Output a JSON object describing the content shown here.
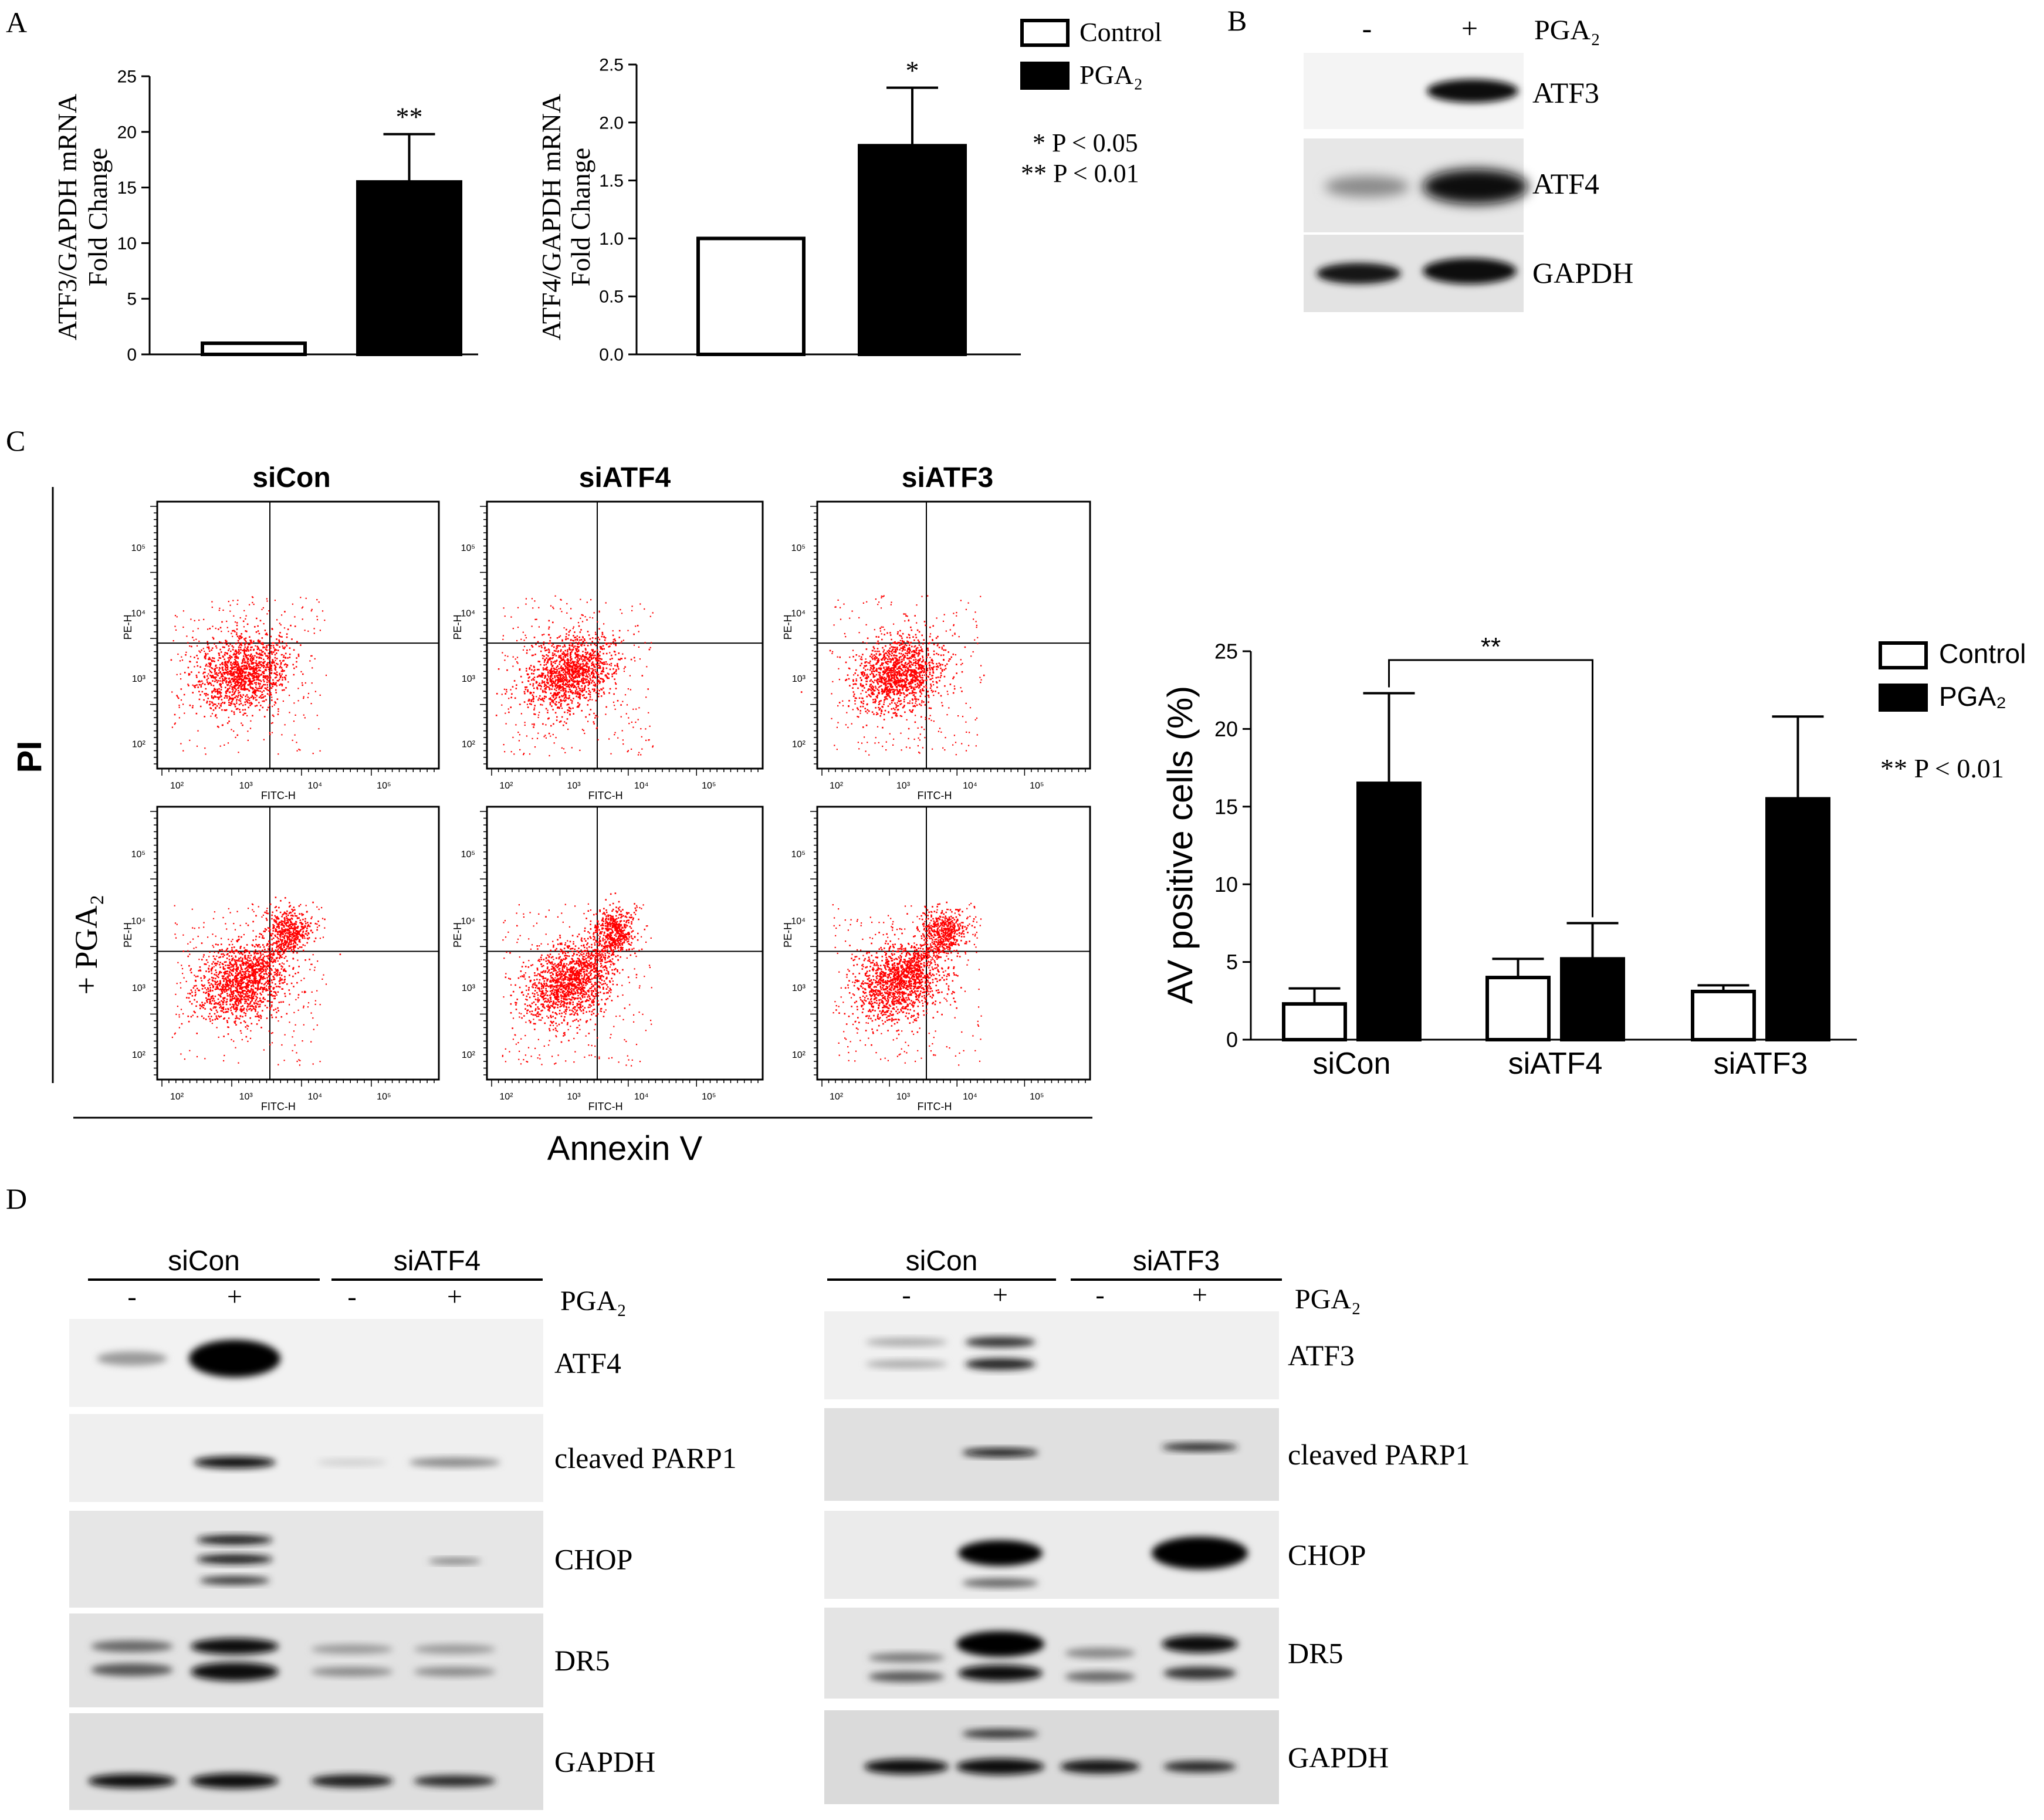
{
  "panels": {
    "a": "A",
    "b": "B",
    "c": "C",
    "d": "D"
  },
  "stats": {
    "a": [
      "* P < 0.05",
      "** P < 0.01"
    ],
    "c": "** P < 0.01"
  },
  "colors": {
    "control": "#ffffff",
    "pga2": "#000000",
    "dots": "#ff0000",
    "axis": "#000000"
  },
  "chart_data": [
    {
      "id": "atf3-mrna",
      "type": "bar",
      "categories": [
        "Control",
        "PGA2"
      ],
      "values": [
        1.0,
        15.5
      ],
      "errors": [
        0,
        4.3
      ],
      "ylabel": "ATF3/GAPDH mRNA",
      "ylabel2": "Fold Change",
      "ylim": [
        0,
        25
      ],
      "yticks": [
        "0",
        "5",
        "10",
        "15",
        "20",
        "25"
      ],
      "significance": "**",
      "legend": [
        "Control",
        "PGA₂"
      ]
    },
    {
      "id": "atf4-mrna",
      "type": "bar",
      "categories": [
        "Control",
        "PGA2"
      ],
      "values": [
        1.0,
        1.8
      ],
      "errors": [
        0,
        0.5
      ],
      "ylabel": "ATF4/GAPDH mRNA",
      "ylabel2": "Fold Change",
      "ylim": [
        0,
        2.5
      ],
      "yticks": [
        "0.0",
        "0.5",
        "1.0",
        "1.5",
        "2.0",
        "2.5"
      ],
      "significance": "*"
    },
    {
      "id": "av-positive",
      "type": "bar",
      "categories": [
        "siCon",
        "siATF4",
        "siATF3"
      ],
      "series": [
        {
          "name": "Control",
          "values": [
            2.3,
            4.0,
            3.1
          ],
          "errors": [
            1.0,
            1.2,
            0.4
          ]
        },
        {
          "name": "PGA₂",
          "values": [
            16.5,
            5.2,
            15.5
          ],
          "errors": [
            5.8,
            2.3,
            5.3
          ]
        }
      ],
      "ylabel": "AV positive cells (%)",
      "ylim": [
        0,
        25
      ],
      "yticks": [
        "0",
        "5",
        "10",
        "15",
        "20",
        "25"
      ],
      "comparison": "**",
      "legend": [
        "Control",
        "PGA₂"
      ]
    }
  ],
  "blot_b": {
    "lanes": [
      "-",
      "+"
    ],
    "treatment": "PGA₂",
    "bands": [
      "ATF3",
      "ATF4",
      "GAPDH"
    ]
  },
  "flow": {
    "columns": [
      "siCon",
      "siATF4",
      "siATF3"
    ],
    "row_label": "+ PGA₂",
    "y_axis": "PI",
    "x_axis": "Annexin V",
    "plot_x_label": "FITC-H",
    "plot_y_label": "PE-H",
    "decade_labels": [
      "10²",
      "10³",
      "10⁴",
      "10⁵"
    ]
  },
  "blot_d_left": {
    "groups": [
      "siCon",
      "siATF4"
    ],
    "lanes": [
      "-",
      "+",
      "-",
      "+"
    ],
    "treatment": "PGA₂",
    "bands": [
      "ATF4",
      "cleaved PARP1",
      "CHOP",
      "DR5",
      "GAPDH"
    ]
  },
  "blot_d_right": {
    "groups": [
      "siCon",
      "siATF3"
    ],
    "lanes": [
      "-",
      "+",
      "-",
      "+"
    ],
    "treatment": "PGA₂",
    "bands": [
      "ATF3",
      "cleaved PARP1",
      "CHOP",
      "DR5",
      "GAPDH"
    ]
  }
}
